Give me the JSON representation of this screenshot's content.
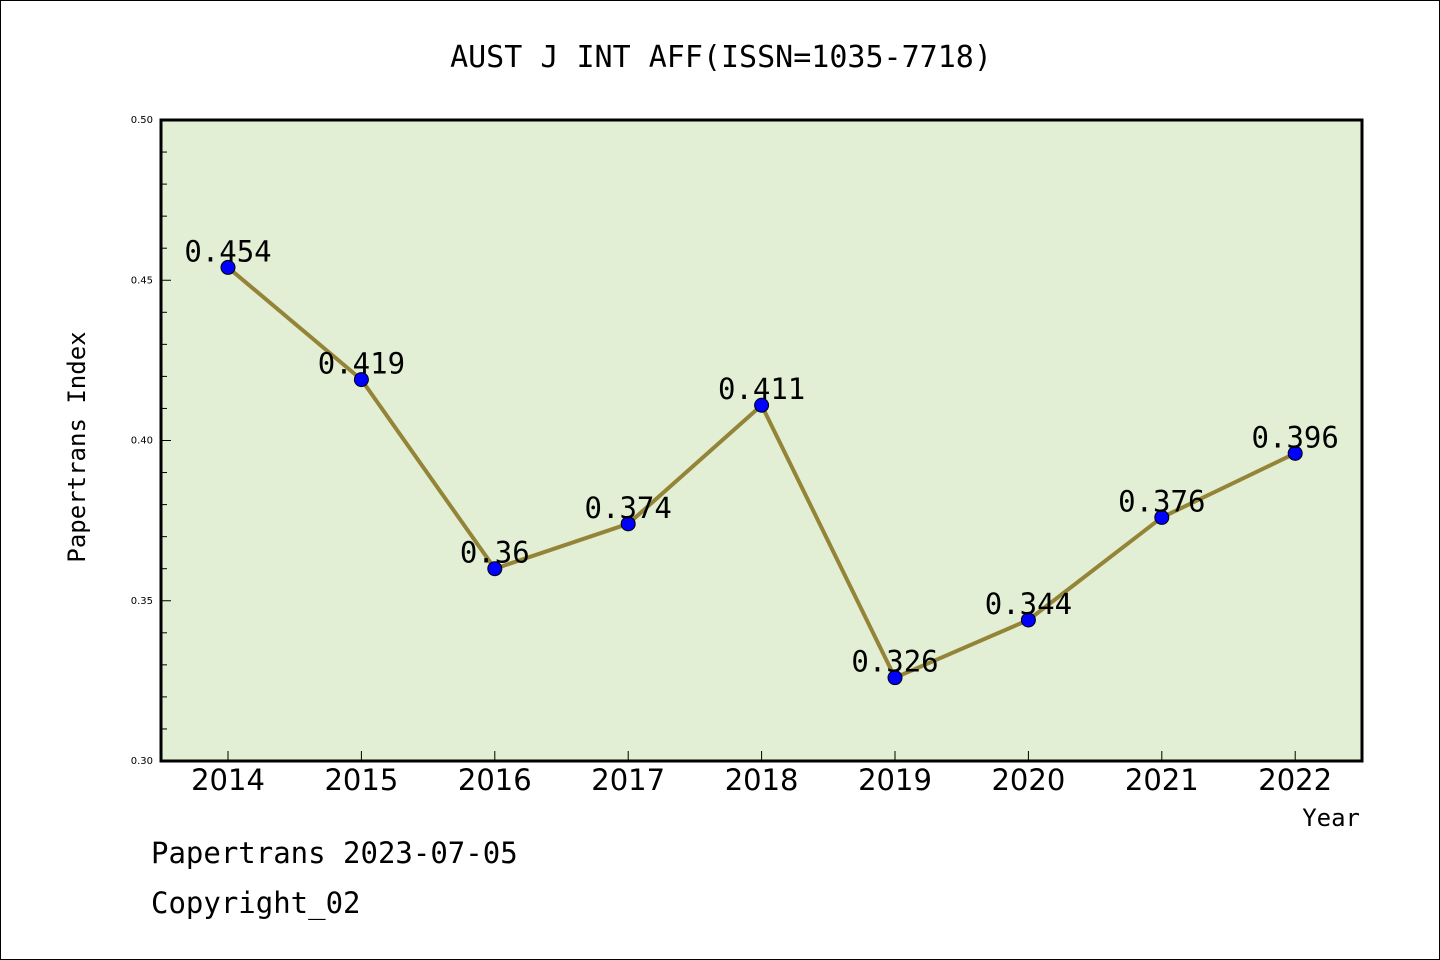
{
  "chart_data": {
    "type": "line",
    "title": "AUST J INT AFF(ISSN=1035-7718)",
    "xlabel": "Year",
    "ylabel": "Papertrans Index",
    "categories": [
      "2014",
      "2015",
      "2016",
      "2017",
      "2018",
      "2019",
      "2020",
      "2021",
      "2022"
    ],
    "series": [
      {
        "values": [
          0.454,
          0.419,
          0.36,
          0.374,
          0.411,
          0.326,
          0.344,
          0.376,
          0.396
        ]
      }
    ],
    "data_labels": [
      "0.454",
      "0.419",
      "0.36",
      "0.374",
      "0.411",
      "0.326",
      "0.344",
      "0.376",
      "0.396"
    ],
    "ylim": [
      0.3,
      0.5
    ],
    "yticks": [
      0.3,
      0.35,
      0.4,
      0.45,
      0.5
    ],
    "ytick_labels": [
      "0.30",
      "0.35",
      "0.40",
      "0.45",
      "0.50"
    ],
    "grid": false,
    "colors": {
      "plot_background": "#e2efd5",
      "line": "#948437",
      "marker": "#0000ff"
    }
  },
  "footer": {
    "line1": "Papertrans 2023-07-05",
    "line2": "Copyright_02"
  }
}
